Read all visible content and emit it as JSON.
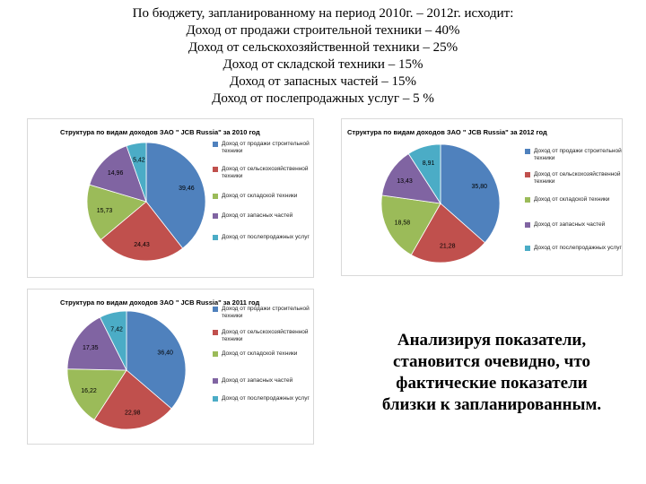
{
  "intro": {
    "lines": [
      "По бюджету, запланированному на период 2010г. – 2012г. исходит:",
      "Доход от продажи строительной техники – 40%",
      "Доход от сельскохозяйственной техники – 25%",
      "Доход от складской техники – 15%",
      "Доход от запасных частей – 15%",
      "Доход от послепродажных услуг – 5 %"
    ]
  },
  "conclusion": {
    "lines": [
      "Анализируя показатели,",
      "становится очевидно, что",
      "фактические показатели",
      "близки к запланированным."
    ]
  },
  "colors": [
    "#4f81bd",
    "#c0504d",
    "#9bbb59",
    "#8064a2",
    "#4bacc6"
  ],
  "chart_data": [
    {
      "type": "pie",
      "title": "Структура по видам доходов ЗАО \" JCB Russia\" за 2010 год",
      "categories": [
        "Доход от продажи строительной техники",
        "Доход от сельскохозяйственной техники",
        "Доход от складской техники",
        "Доход от запасных частей",
        "Доход от послепродажных услуг"
      ],
      "values": [
        39.46,
        24.43,
        15.73,
        14.96,
        5.42
      ],
      "labels": [
        "39,46",
        "24,43",
        "15,73",
        "14,96",
        "5,42"
      ],
      "legend": "right"
    },
    {
      "type": "pie",
      "title": "Структура по видам доходов ЗАО \" JCB Russia\" за 2012 год",
      "categories": [
        "Доход от продажи строительной техники",
        "Доход от сельскохозяйственной техники",
        "Доход от складской техники",
        "Доход от запасных частей",
        "Доход от послепродажных услуг"
      ],
      "values": [
        35.8,
        21.28,
        18.58,
        13.43,
        8.91
      ],
      "labels": [
        "35,80",
        "21,28",
        "18,58",
        "13,43",
        "8,91"
      ],
      "legend": "right"
    },
    {
      "type": "pie",
      "title": "Структура по видам доходов ЗАО \" JCB Russia\" за 2011 год",
      "categories": [
        "Доход от продажи строительной техники",
        "Доход от сельскохозяйственной техники",
        "Доход от складской техники",
        "Доход от запасных частей",
        "Доход от послепродажных услуг"
      ],
      "values": [
        36.4,
        22.98,
        16.22,
        17.35,
        7.42
      ],
      "labels": [
        "36,40",
        "22,98",
        "16,22",
        "17,35",
        "7,42"
      ],
      "legend": "right"
    }
  ]
}
